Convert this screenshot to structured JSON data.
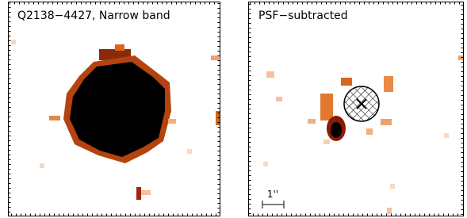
{
  "panels": [
    {
      "label": "Q2138−4427, Narrow band"
    },
    {
      "label": "PSF−subtracted"
    }
  ],
  "scale_bar": {
    "label": "1''"
  }
}
